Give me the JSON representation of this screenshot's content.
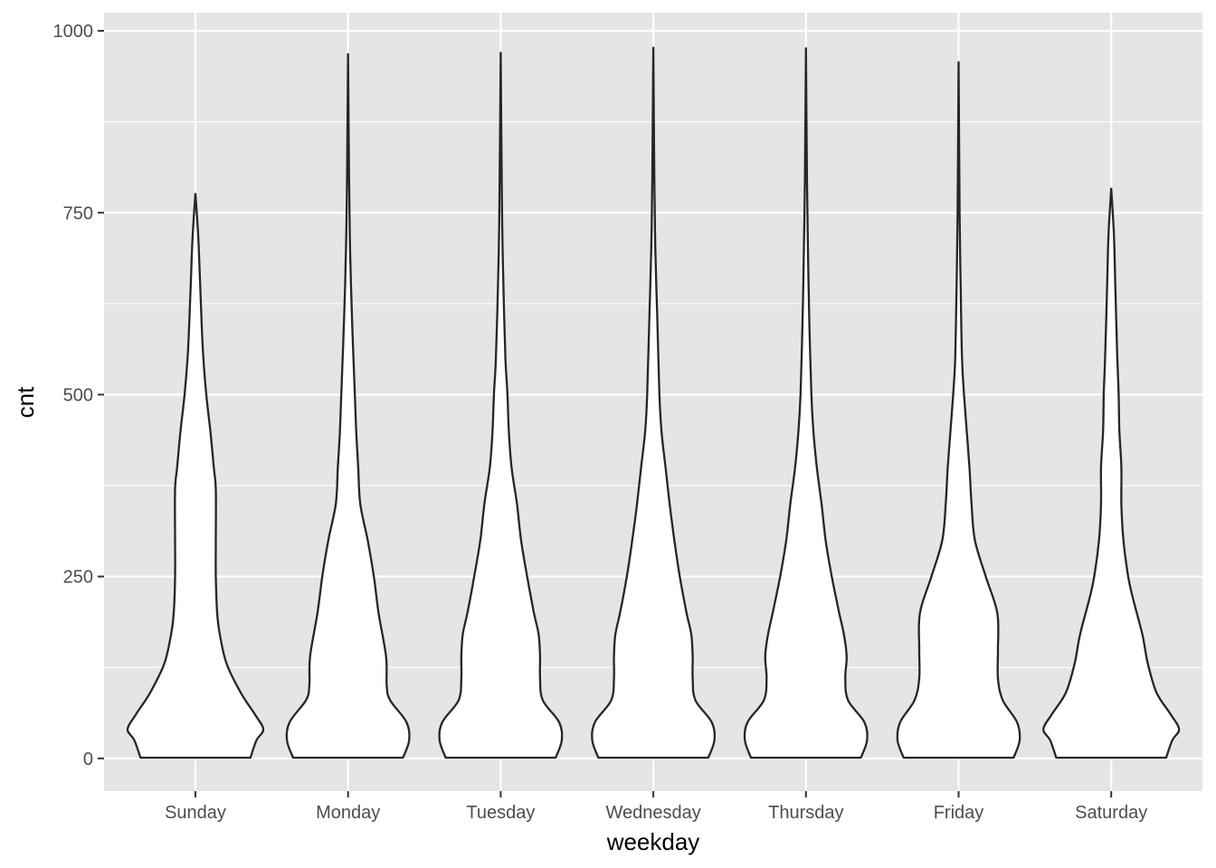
{
  "chart_data": {
    "type": "violin",
    "xlabel": "weekday",
    "ylabel": "cnt",
    "categories": [
      "Sunday",
      "Monday",
      "Tuesday",
      "Wednesday",
      "Thursday",
      "Friday",
      "Saturday"
    ],
    "ylim": [
      -45,
      1025
    ],
    "yticks": [
      0,
      250,
      500,
      750,
      1000
    ],
    "grid": true,
    "colors": {
      "panel": "#e5e5e5",
      "grid": "#ffffff",
      "violin_fill": "#ffffff",
      "violin_stroke": "#262626",
      "tick_text": "#4d4d4d"
    },
    "series": [
      {
        "category": "Sunday",
        "max": 776,
        "profile": [
          [
            1,
            0.81
          ],
          [
            25,
            0.9
          ],
          [
            40,
            1.0
          ],
          [
            60,
            0.88
          ],
          [
            90,
            0.67
          ],
          [
            130,
            0.46
          ],
          [
            170,
            0.36
          ],
          [
            200,
            0.32
          ],
          [
            250,
            0.3
          ],
          [
            300,
            0.3
          ],
          [
            370,
            0.3
          ],
          [
            400,
            0.27
          ],
          [
            450,
            0.22
          ],
          [
            500,
            0.16
          ],
          [
            560,
            0.11
          ],
          [
            650,
            0.07
          ],
          [
            720,
            0.04
          ],
          [
            776,
            0.0
          ]
        ]
      },
      {
        "category": "Monday",
        "max": 968,
        "profile": [
          [
            1,
            0.81
          ],
          [
            25,
            0.9
          ],
          [
            50,
            0.86
          ],
          [
            80,
            0.62
          ],
          [
            100,
            0.57
          ],
          [
            140,
            0.56
          ],
          [
            200,
            0.45
          ],
          [
            250,
            0.38
          ],
          [
            300,
            0.29
          ],
          [
            350,
            0.18
          ],
          [
            400,
            0.15
          ],
          [
            450,
            0.12
          ],
          [
            500,
            0.1
          ],
          [
            600,
            0.06
          ],
          [
            700,
            0.03
          ],
          [
            800,
            0.015
          ],
          [
            968,
            0.0
          ]
        ]
      },
      {
        "category": "Tuesday",
        "max": 970,
        "profile": [
          [
            1,
            0.81
          ],
          [
            25,
            0.9
          ],
          [
            50,
            0.86
          ],
          [
            80,
            0.62
          ],
          [
            110,
            0.58
          ],
          [
            140,
            0.58
          ],
          [
            170,
            0.56
          ],
          [
            200,
            0.49
          ],
          [
            250,
            0.39
          ],
          [
            300,
            0.3
          ],
          [
            350,
            0.24
          ],
          [
            400,
            0.16
          ],
          [
            450,
            0.12
          ],
          [
            500,
            0.1
          ],
          [
            550,
            0.07
          ],
          [
            650,
            0.04
          ],
          [
            750,
            0.02
          ],
          [
            970,
            0.0
          ]
        ]
      },
      {
        "category": "Wednesday",
        "max": 977,
        "profile": [
          [
            1,
            0.81
          ],
          [
            25,
            0.9
          ],
          [
            50,
            0.86
          ],
          [
            80,
            0.62
          ],
          [
            110,
            0.58
          ],
          [
            140,
            0.58
          ],
          [
            170,
            0.56
          ],
          [
            200,
            0.49
          ],
          [
            250,
            0.39
          ],
          [
            300,
            0.31
          ],
          [
            350,
            0.24
          ],
          [
            400,
            0.18
          ],
          [
            450,
            0.12
          ],
          [
            500,
            0.09
          ],
          [
            600,
            0.06
          ],
          [
            700,
            0.03
          ],
          [
            800,
            0.015
          ],
          [
            977,
            0.0
          ]
        ]
      },
      {
        "category": "Thursday",
        "max": 976,
        "profile": [
          [
            1,
            0.81
          ],
          [
            25,
            0.9
          ],
          [
            50,
            0.86
          ],
          [
            80,
            0.62
          ],
          [
            110,
            0.58
          ],
          [
            140,
            0.6
          ],
          [
            170,
            0.56
          ],
          [
            200,
            0.49
          ],
          [
            250,
            0.38
          ],
          [
            300,
            0.29
          ],
          [
            350,
            0.23
          ],
          [
            400,
            0.16
          ],
          [
            450,
            0.11
          ],
          [
            500,
            0.08
          ],
          [
            600,
            0.05
          ],
          [
            700,
            0.03
          ],
          [
            800,
            0.015
          ],
          [
            976,
            0.0
          ]
        ]
      },
      {
        "category": "Friday",
        "max": 957,
        "profile": [
          [
            1,
            0.81
          ],
          [
            25,
            0.9
          ],
          [
            50,
            0.86
          ],
          [
            80,
            0.65
          ],
          [
            110,
            0.58
          ],
          [
            150,
            0.58
          ],
          [
            200,
            0.57
          ],
          [
            250,
            0.4
          ],
          [
            300,
            0.24
          ],
          [
            350,
            0.19
          ],
          [
            400,
            0.16
          ],
          [
            450,
            0.12
          ],
          [
            500,
            0.08
          ],
          [
            550,
            0.05
          ],
          [
            650,
            0.03
          ],
          [
            750,
            0.015
          ],
          [
            957,
            0.0
          ]
        ]
      },
      {
        "category": "Saturday",
        "max": 783,
        "profile": [
          [
            1,
            0.81
          ],
          [
            25,
            0.9
          ],
          [
            40,
            1.0
          ],
          [
            60,
            0.88
          ],
          [
            90,
            0.67
          ],
          [
            130,
            0.54
          ],
          [
            170,
            0.46
          ],
          [
            220,
            0.32
          ],
          [
            250,
            0.25
          ],
          [
            300,
            0.18
          ],
          [
            350,
            0.15
          ],
          [
            400,
            0.15
          ],
          [
            450,
            0.12
          ],
          [
            500,
            0.11
          ],
          [
            550,
            0.09
          ],
          [
            650,
            0.06
          ],
          [
            720,
            0.04
          ],
          [
            783,
            0.0
          ]
        ]
      }
    ]
  }
}
